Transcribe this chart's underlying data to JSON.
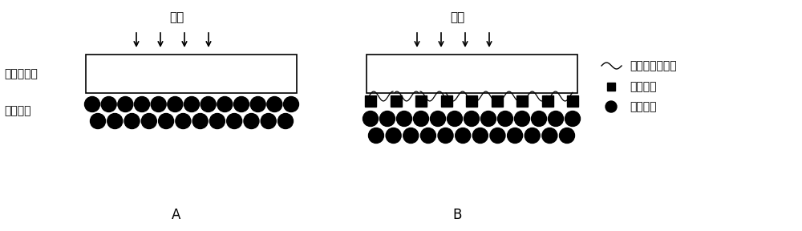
{
  "bg_color": "#ffffff",
  "fig_width": 10.0,
  "fig_height": 2.88,
  "dpi": 100,
  "diagram_A": {
    "label": "A",
    "gas_text": "气体",
    "membrane_label": "防水透气膜",
    "catalyst_label": "催化材料"
  },
  "diagram_B": {
    "label": "B",
    "gas_text": "气体"
  },
  "legend": {
    "text_chain": "高分子聚合物链",
    "text_conducting": "导电材料",
    "text_catalyst": "催化材料"
  }
}
